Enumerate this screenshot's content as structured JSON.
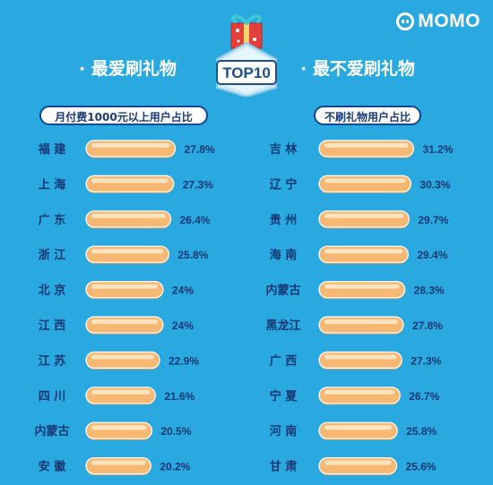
{
  "brand": "MOMO",
  "badge_text": "TOP10",
  "colors": {
    "background": "#29a9e0",
    "bar": "#f6b872",
    "bar_highlight": "#fbe3bd",
    "bar_shadow": "#e79a52",
    "label": "#173875"
  },
  "chart_data": [
    {
      "type": "bar",
      "orientation": "horizontal",
      "title": "· 最爱刷礼物",
      "subtitle": "月付费1000元以上用户占比",
      "unit": "%",
      "categories": [
        "福 建",
        "上 海",
        "广 东",
        "浙 江",
        "北 京",
        "江 西",
        "江 苏",
        "四 川",
        "内蒙古",
        "安 徽"
      ],
      "values": [
        27.8,
        27.3,
        26.4,
        25.8,
        24,
        24,
        22.9,
        21.6,
        20.5,
        20.2
      ],
      "value_labels": [
        "27.8%",
        "27.3%",
        "26.4%",
        "25.8%",
        "24%",
        "24%",
        "22.9%",
        "21.6%",
        "20.5%",
        "20.2%"
      ]
    },
    {
      "type": "bar",
      "orientation": "horizontal",
      "title": "· 最不爱刷礼物",
      "subtitle": "不刷礼物用户占比",
      "unit": "%",
      "categories": [
        "吉 林",
        "辽 宁",
        "贵 州",
        "海 南",
        "内蒙古",
        "黑龙江",
        "广 西",
        "宁 夏",
        "河 南",
        "甘 肃"
      ],
      "values": [
        31.2,
        30.3,
        29.7,
        29.4,
        28.3,
        27.8,
        27.3,
        26.7,
        25.8,
        25.6
      ],
      "value_labels": [
        "31.2%",
        "30.3%",
        "29.7%",
        "29.4%",
        "28.3%",
        "27.8%",
        "27.3%",
        "26.7%",
        "25.8%",
        "25.6%"
      ]
    }
  ]
}
